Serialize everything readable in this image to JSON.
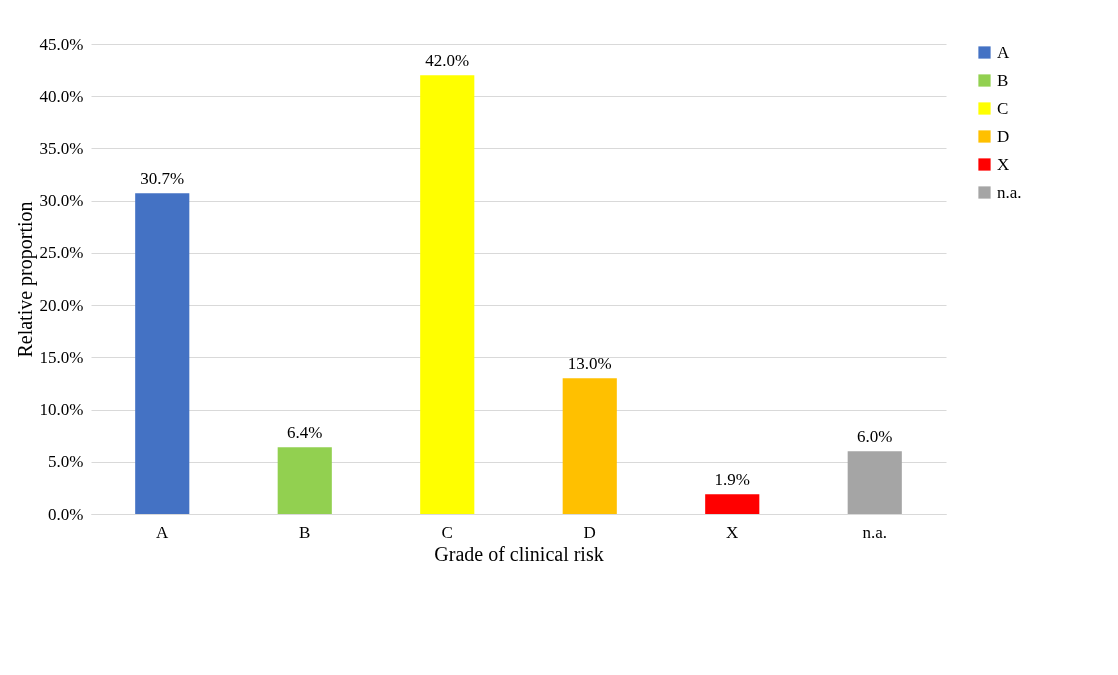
{
  "chart_data": {
    "type": "bar",
    "xlabel": "Grade of clinical risk",
    "ylabel": "Relative proportion",
    "categories": [
      "A",
      "B",
      "C",
      "D",
      "X",
      "n.a."
    ],
    "series": [
      {
        "name": "A",
        "color": "#4472c4",
        "values": [
          30.7,
          null,
          null,
          null,
          null,
          null
        ],
        "value_labels": [
          "30.7%",
          null,
          null,
          null,
          null,
          null
        ]
      },
      {
        "name": "B",
        "color": "#92d050",
        "values": [
          null,
          6.4,
          null,
          null,
          null,
          null
        ],
        "value_labels": [
          null,
          "6.4%",
          null,
          null,
          null,
          null
        ]
      },
      {
        "name": "C",
        "color": "#ffff00",
        "values": [
          null,
          null,
          42.0,
          null,
          null,
          null
        ],
        "value_labels": [
          null,
          null,
          "42.0%",
          null,
          null,
          null
        ]
      },
      {
        "name": "D",
        "color": "#ffc000",
        "values": [
          null,
          null,
          null,
          13.0,
          null,
          null
        ],
        "value_labels": [
          null,
          null,
          null,
          "13.0%",
          null,
          null
        ]
      },
      {
        "name": "X",
        "color": "#ff0000",
        "values": [
          null,
          null,
          null,
          null,
          1.9,
          null
        ],
        "value_labels": [
          null,
          null,
          null,
          null,
          "1.9%",
          null
        ]
      },
      {
        "name": "n.a.",
        "color": "#a5a5a5",
        "values": [
          null,
          null,
          null,
          null,
          null,
          6.0
        ],
        "value_labels": [
          null,
          null,
          null,
          null,
          null,
          "6.0%"
        ]
      }
    ],
    "ylim": [
      0,
      45
    ],
    "yticks": [
      {
        "value": 0,
        "label": "0.0%"
      },
      {
        "value": 5,
        "label": "5.0%"
      },
      {
        "value": 10,
        "label": "10.0%"
      },
      {
        "value": 15,
        "label": "15.0%"
      },
      {
        "value": 20,
        "label": "20.0%"
      },
      {
        "value": 25,
        "label": "25.0%"
      },
      {
        "value": 30,
        "label": "30.0%"
      },
      {
        "value": 35,
        "label": "35.0%"
      },
      {
        "value": 40,
        "label": "40.0%"
      },
      {
        "value": 45,
        "label": "45.0%"
      }
    ],
    "grid": "y",
    "legend": "right"
  }
}
